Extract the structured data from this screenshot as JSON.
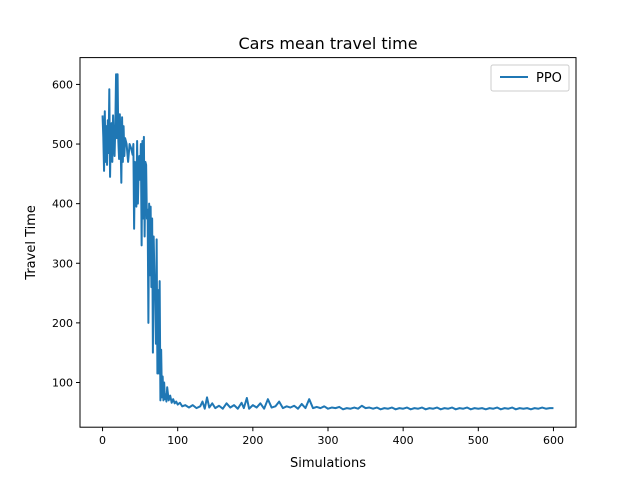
{
  "chart_data": {
    "type": "line",
    "title": "Cars mean travel time",
    "xlabel": "Simulations",
    "ylabel": "Travel Time",
    "xlim": [
      -30,
      630
    ],
    "ylim": [
      25,
      645
    ],
    "xticks": [
      0,
      100,
      200,
      300,
      400,
      500,
      600
    ],
    "yticks": [
      100,
      200,
      300,
      400,
      500,
      600
    ],
    "grid": false,
    "legend_position": "top-right",
    "series": [
      {
        "name": "PPO",
        "color": "#1f77b4",
        "points": [
          [
            0,
            548
          ],
          [
            1,
            512
          ],
          [
            2,
            455
          ],
          [
            3,
            555
          ],
          [
            4,
            470
          ],
          [
            5,
            530
          ],
          [
            6,
            465
          ],
          [
            7,
            540
          ],
          [
            8,
            485
          ],
          [
            9,
            592
          ],
          [
            10,
            445
          ],
          [
            11,
            520
          ],
          [
            12,
            535
          ],
          [
            13,
            470
          ],
          [
            14,
            548
          ],
          [
            15,
            500
          ],
          [
            16,
            480
          ],
          [
            17,
            530
          ],
          [
            18,
            617
          ],
          [
            19,
            510
          ],
          [
            20,
            617
          ],
          [
            21,
            505
          ],
          [
            22,
            475
          ],
          [
            23,
            550
          ],
          [
            24,
            505
          ],
          [
            25,
            435
          ],
          [
            26,
            545
          ],
          [
            27,
            470
          ],
          [
            28,
            530
          ],
          [
            29,
            480
          ],
          [
            30,
            510
          ],
          [
            32,
            500
          ],
          [
            34,
            470
          ],
          [
            36,
            500
          ],
          [
            38,
            493
          ],
          [
            40,
            482
          ],
          [
            41,
            500
          ],
          [
            42,
            358
          ],
          [
            43,
            470
          ],
          [
            44,
            460
          ],
          [
            45,
            395
          ],
          [
            46,
            505
          ],
          [
            47,
            400
          ],
          [
            48,
            455
          ],
          [
            49,
            480
          ],
          [
            50,
            440
          ],
          [
            51,
            500
          ],
          [
            52,
            330
          ],
          [
            53,
            505
          ],
          [
            54,
            375
          ],
          [
            55,
            512
          ],
          [
            56,
            345
          ],
          [
            57,
            470
          ],
          [
            58,
            465
          ],
          [
            59,
            375
          ],
          [
            60,
            390
          ],
          [
            61,
            200
          ],
          [
            62,
            400
          ],
          [
            63,
            280
          ],
          [
            64,
            395
          ],
          [
            65,
            260
          ],
          [
            66,
            375
          ],
          [
            67,
            150
          ],
          [
            68,
            345
          ],
          [
            69,
            280
          ],
          [
            70,
            250
          ],
          [
            71,
            165
          ],
          [
            72,
            340
          ],
          [
            73,
            115
          ],
          [
            74,
            255
          ],
          [
            75,
            115
          ],
          [
            76,
            270
          ],
          [
            77,
            70
          ],
          [
            78,
            155
          ],
          [
            79,
            75
          ],
          [
            80,
            110
          ],
          [
            81,
            70
          ],
          [
            82,
            100
          ],
          [
            83,
            72
          ],
          [
            84,
            80
          ],
          [
            85,
            68
          ],
          [
            86,
            92
          ],
          [
            88,
            70
          ],
          [
            90,
            78
          ],
          [
            92,
            66
          ],
          [
            94,
            72
          ],
          [
            96,
            65
          ],
          [
            98,
            68
          ],
          [
            100,
            63
          ],
          [
            103,
            66
          ],
          [
            106,
            60
          ],
          [
            110,
            62
          ],
          [
            115,
            58
          ],
          [
            120,
            62
          ],
          [
            125,
            57
          ],
          [
            130,
            60
          ],
          [
            133,
            68
          ],
          [
            136,
            56
          ],
          [
            139,
            75
          ],
          [
            142,
            58
          ],
          [
            146,
            65
          ],
          [
            150,
            57
          ],
          [
            155,
            61
          ],
          [
            160,
            56
          ],
          [
            165,
            65
          ],
          [
            170,
            58
          ],
          [
            175,
            62
          ],
          [
            180,
            56
          ],
          [
            185,
            66
          ],
          [
            188,
            57
          ],
          [
            192,
            74
          ],
          [
            195,
            56
          ],
          [
            200,
            62
          ],
          [
            205,
            58
          ],
          [
            210,
            65
          ],
          [
            215,
            56
          ],
          [
            220,
            72
          ],
          [
            225,
            58
          ],
          [
            230,
            60
          ],
          [
            235,
            68
          ],
          [
            240,
            57
          ],
          [
            245,
            60
          ],
          [
            250,
            58
          ],
          [
            255,
            61
          ],
          [
            260,
            56
          ],
          [
            265,
            64
          ],
          [
            270,
            57
          ],
          [
            275,
            72
          ],
          [
            280,
            57
          ],
          [
            285,
            59
          ],
          [
            290,
            57
          ],
          [
            295,
            60
          ],
          [
            300,
            56
          ],
          [
            305,
            58
          ],
          [
            310,
            57
          ],
          [
            315,
            59
          ],
          [
            320,
            55
          ],
          [
            325,
            57
          ],
          [
            330,
            56
          ],
          [
            335,
            58
          ],
          [
            340,
            56
          ],
          [
            345,
            61
          ],
          [
            350,
            57
          ],
          [
            355,
            58
          ],
          [
            360,
            56
          ],
          [
            365,
            58
          ],
          [
            370,
            55
          ],
          [
            375,
            57
          ],
          [
            380,
            56
          ],
          [
            385,
            58
          ],
          [
            390,
            55
          ],
          [
            395,
            57
          ],
          [
            400,
            56
          ],
          [
            405,
            58
          ],
          [
            410,
            55
          ],
          [
            415,
            57
          ],
          [
            420,
            56
          ],
          [
            425,
            58
          ],
          [
            430,
            55
          ],
          [
            435,
            57
          ],
          [
            440,
            56
          ],
          [
            445,
            58
          ],
          [
            450,
            55
          ],
          [
            455,
            57
          ],
          [
            460,
            56
          ],
          [
            465,
            58
          ],
          [
            470,
            55
          ],
          [
            475,
            57
          ],
          [
            480,
            56
          ],
          [
            485,
            58
          ],
          [
            490,
            55
          ],
          [
            495,
            57
          ],
          [
            500,
            56
          ],
          [
            505,
            57
          ],
          [
            510,
            55
          ],
          [
            515,
            57
          ],
          [
            520,
            56
          ],
          [
            525,
            58
          ],
          [
            530,
            55
          ],
          [
            535,
            57
          ],
          [
            540,
            56
          ],
          [
            545,
            58
          ],
          [
            550,
            55
          ],
          [
            555,
            57
          ],
          [
            560,
            56
          ],
          [
            565,
            57
          ],
          [
            570,
            55
          ],
          [
            575,
            57
          ],
          [
            580,
            56
          ],
          [
            585,
            58
          ],
          [
            590,
            56
          ],
          [
            595,
            57
          ],
          [
            600,
            57
          ]
        ]
      }
    ]
  }
}
